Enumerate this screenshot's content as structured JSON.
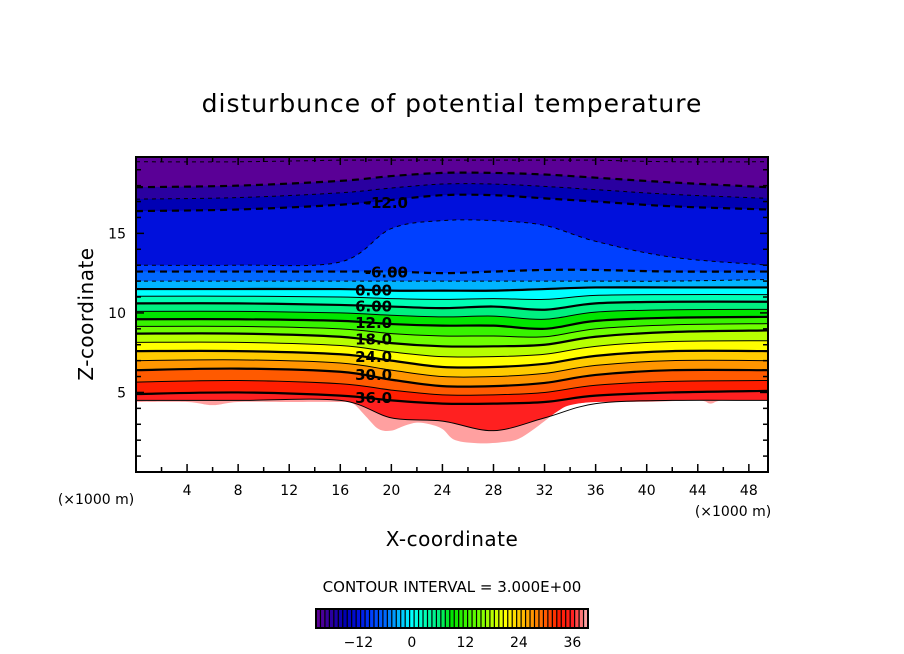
{
  "chart_data": {
    "type": "contour",
    "title": "disturbunce of potential temperature",
    "xlabel": "X-coordinate",
    "ylabel": "Z-coordinate",
    "x_unit": "(×1000 m)",
    "y_unit": "(×1000 m)",
    "xlim": [
      0,
      49.5
    ],
    "ylim": [
      0,
      19.8
    ],
    "xticks": [
      4,
      8,
      12,
      16,
      20,
      24,
      28,
      32,
      36,
      40,
      44,
      48
    ],
    "yticks": [
      5,
      10,
      15
    ],
    "contour_interval_text": "CONTOUR INTERVAL = 3.000E+00",
    "contour_interval": 3,
    "level_range": [
      -21,
      39
    ],
    "profile_x": [
      0,
      8,
      16,
      20,
      24,
      28,
      32,
      36,
      42,
      49.5
    ],
    "contours": {
      "-21": [
        19.5,
        19.5,
        19.6,
        19.6,
        19.6,
        19.6,
        19.6,
        19.6,
        19.5,
        19.5
      ],
      "-18": [
        17.9,
        18.0,
        18.3,
        18.6,
        18.8,
        18.8,
        18.7,
        18.5,
        18.2,
        17.9
      ],
      "-12": [
        16.4,
        16.5,
        16.8,
        17.1,
        17.4,
        17.4,
        17.2,
        17.0,
        16.7,
        16.5
      ],
      "-9": [
        13.0,
        13.0,
        13.2,
        15.3,
        15.8,
        15.8,
        15.5,
        14.5,
        13.5,
        13.0
      ],
      "-6": [
        12.6,
        12.6,
        12.6,
        12.6,
        12.5,
        12.6,
        12.7,
        12.7,
        12.6,
        12.6
      ],
      "-3": [
        12.0,
        12.0,
        12.0,
        12.0,
        12.0,
        12.0,
        12.0,
        12.0,
        12.0,
        12.1
      ],
      "0": [
        11.5,
        11.5,
        11.5,
        11.4,
        11.4,
        11.4,
        11.5,
        11.6,
        11.6,
        11.6
      ],
      "6": [
        10.6,
        10.6,
        10.5,
        10.4,
        10.3,
        10.4,
        10.2,
        10.6,
        10.7,
        10.7
      ],
      "12": [
        9.6,
        9.6,
        9.5,
        9.3,
        9.2,
        9.2,
        9.0,
        9.5,
        9.7,
        9.75
      ],
      "18": [
        8.7,
        8.7,
        8.5,
        8.1,
        7.9,
        7.9,
        8.0,
        8.5,
        8.8,
        8.9
      ],
      "24": [
        7.6,
        7.6,
        7.4,
        7.0,
        6.6,
        6.6,
        6.8,
        7.3,
        7.6,
        7.6
      ],
      "30": [
        6.4,
        6.5,
        6.3,
        5.8,
        5.4,
        5.4,
        5.6,
        6.1,
        6.4,
        6.4
      ],
      "36": [
        4.9,
        5.0,
        4.8,
        4.5,
        4.3,
        4.3,
        4.4,
        4.8,
        5.0,
        5.1
      ],
      "39": [
        4.5,
        4.5,
        4.5,
        3.4,
        3.2,
        2.6,
        3.4,
        4.3,
        4.5,
        4.5
      ]
    },
    "terrain": {
      "x": [
        0,
        4,
        6,
        8,
        12,
        16,
        17,
        18,
        19,
        20,
        21,
        22,
        23,
        24,
        25,
        27,
        29,
        30,
        31,
        32,
        33,
        34,
        36,
        40,
        44,
        45,
        46,
        49.5
      ],
      "z": [
        4.4,
        4.4,
        4.2,
        4.4,
        4.4,
        4.4,
        4.3,
        3.5,
        2.7,
        2.6,
        2.9,
        3.1,
        3.0,
        2.7,
        2.0,
        1.8,
        1.9,
        2.1,
        2.6,
        3.2,
        3.8,
        4.2,
        4.4,
        4.4,
        4.5,
        4.3,
        4.5,
        4.5
      ]
    },
    "contour_labels": [
      {
        "level": -12,
        "text": "-12.0",
        "x": 18.2
      },
      {
        "level": -6,
        "text": "-6.00",
        "x": 18.2
      },
      {
        "level": 0,
        "text": "0.00",
        "x": 17.2
      },
      {
        "level": 6,
        "text": "6.00",
        "x": 17.2
      },
      {
        "level": 12,
        "text": "12.0",
        "x": 17.2
      },
      {
        "level": 18,
        "text": "18.0",
        "x": 17.2
      },
      {
        "level": 24,
        "text": "24.0",
        "x": 17.2
      },
      {
        "level": 30,
        "text": "30.0",
        "x": 17.2
      },
      {
        "level": 36,
        "text": "36.0",
        "x": 17.2
      }
    ],
    "colorbar": {
      "ticks": [
        -12,
        0,
        12,
        24,
        36
      ],
      "tick_labels": [
        "−12",
        "0",
        "12",
        "24",
        "36"
      ],
      "range": [
        -21,
        39
      ]
    },
    "colormap": [
      [
        -21,
        "#5a0096"
      ],
      [
        -18,
        "#2a00a0"
      ],
      [
        -15,
        "#0000b4"
      ],
      [
        -12,
        "#0010dc"
      ],
      [
        -9,
        "#0040ff"
      ],
      [
        -6,
        "#0068ff"
      ],
      [
        -3,
        "#00b4ff"
      ],
      [
        0,
        "#00ffff"
      ],
      [
        3,
        "#00ffb4"
      ],
      [
        6,
        "#00f080"
      ],
      [
        9,
        "#00e600"
      ],
      [
        15,
        "#6eff00"
      ],
      [
        21,
        "#ffff00"
      ],
      [
        27,
        "#ff9600"
      ],
      [
        33,
        "#ff1e00"
      ],
      [
        36,
        "#ff2020"
      ],
      [
        39,
        "#ffa0a0"
      ]
    ]
  }
}
